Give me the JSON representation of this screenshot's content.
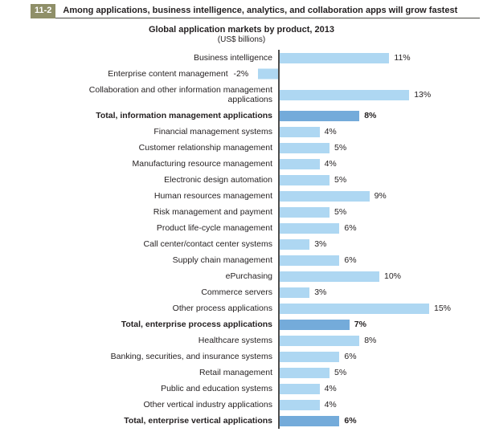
{
  "header": {
    "figure_number": "11-2",
    "title": "Among applications, business intelligence, analytics, and collaboration apps will grow fastest"
  },
  "chart_data": {
    "type": "bar",
    "orientation": "horizontal",
    "title": "Global application markets by product, 2013",
    "subtitle": "(US$ billions)",
    "value_unit": "percent",
    "xlim": [
      -2,
      16
    ],
    "grid": false,
    "legend": "none",
    "colors": {
      "bar": "#aed7f2",
      "total_bar": "#74abda",
      "axis": "#4d4d4d",
      "badge_bg": "#8f8f68",
      "text": "#231f20"
    },
    "rows": [
      {
        "label": "Business intelligence",
        "value": 11,
        "display": "11%",
        "total": false
      },
      {
        "label": "Enterprise content management",
        "value": -2,
        "display": "-2%",
        "total": false
      },
      {
        "label": "Collaboration and other information management\napplications",
        "value": 13,
        "display": "13%",
        "total": false
      },
      {
        "label": "Total, information management applications",
        "value": 8,
        "display": "8%",
        "total": true
      },
      {
        "label": "Financial management systems",
        "value": 4,
        "display": "4%",
        "total": false
      },
      {
        "label": "Customer relationship management",
        "value": 5,
        "display": "5%",
        "total": false
      },
      {
        "label": "Manufacturing resource management",
        "value": 4,
        "display": "4%",
        "total": false
      },
      {
        "label": "Electronic design automation",
        "value": 5,
        "display": "5%",
        "total": false
      },
      {
        "label": "Human resources management",
        "value": 9,
        "display": "9%",
        "total": false
      },
      {
        "label": "Risk management and payment",
        "value": 5,
        "display": "5%",
        "total": false
      },
      {
        "label": "Product life-cycle management",
        "value": 6,
        "display": "6%",
        "total": false
      },
      {
        "label": "Call center/contact center systems",
        "value": 3,
        "display": "3%",
        "total": false
      },
      {
        "label": "Supply chain management",
        "value": 6,
        "display": "6%",
        "total": false
      },
      {
        "label": "ePurchasing",
        "value": 10,
        "display": "10%",
        "total": false
      },
      {
        "label": "Commerce servers",
        "value": 3,
        "display": "3%",
        "total": false
      },
      {
        "label": "Other process applications",
        "value": 15,
        "display": "15%",
        "total": false
      },
      {
        "label": "Total, enterprise process applications",
        "value": 7,
        "display": "7%",
        "total": true
      },
      {
        "label": "Healthcare systems",
        "value": 8,
        "display": "8%",
        "total": false
      },
      {
        "label": "Banking, securities, and insurance systems",
        "value": 6,
        "display": "6%",
        "total": false
      },
      {
        "label": "Retail management",
        "value": 5,
        "display": "5%",
        "total": false
      },
      {
        "label": "Public and education systems",
        "value": 4,
        "display": "4%",
        "total": false
      },
      {
        "label": "Other vertical industry applications",
        "value": 4,
        "display": "4%",
        "total": false
      },
      {
        "label": "Total, enterprise vertical applications",
        "value": 6,
        "display": "6%",
        "total": true
      }
    ]
  }
}
